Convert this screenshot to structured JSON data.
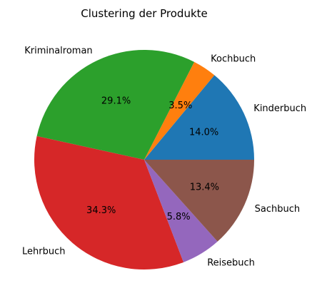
{
  "chart_data": {
    "type": "pie",
    "title": "Clustering der Produkte",
    "slices": [
      {
        "label": "Kinderbuch",
        "value": 14.0,
        "pct_label": "14.0%",
        "color": "#1f77b4"
      },
      {
        "label": "Kochbuch",
        "value": 3.5,
        "pct_label": "3.5%",
        "color": "#ff7f0e"
      },
      {
        "label": "Kriminalroman",
        "value": 29.1,
        "pct_label": "29.1%",
        "color": "#2ca02c"
      },
      {
        "label": "Lehrbuch",
        "value": 34.3,
        "pct_label": "34.3%",
        "color": "#d62728"
      },
      {
        "label": "Reisebuch",
        "value": 5.8,
        "pct_label": "5.8%",
        "color": "#9467bd"
      },
      {
        "label": "Sachbuch",
        "value": 13.4,
        "pct_label": "13.4%",
        "color": "#8c564b"
      }
    ],
    "start_angle": 0,
    "direction": "counterclockwise"
  }
}
